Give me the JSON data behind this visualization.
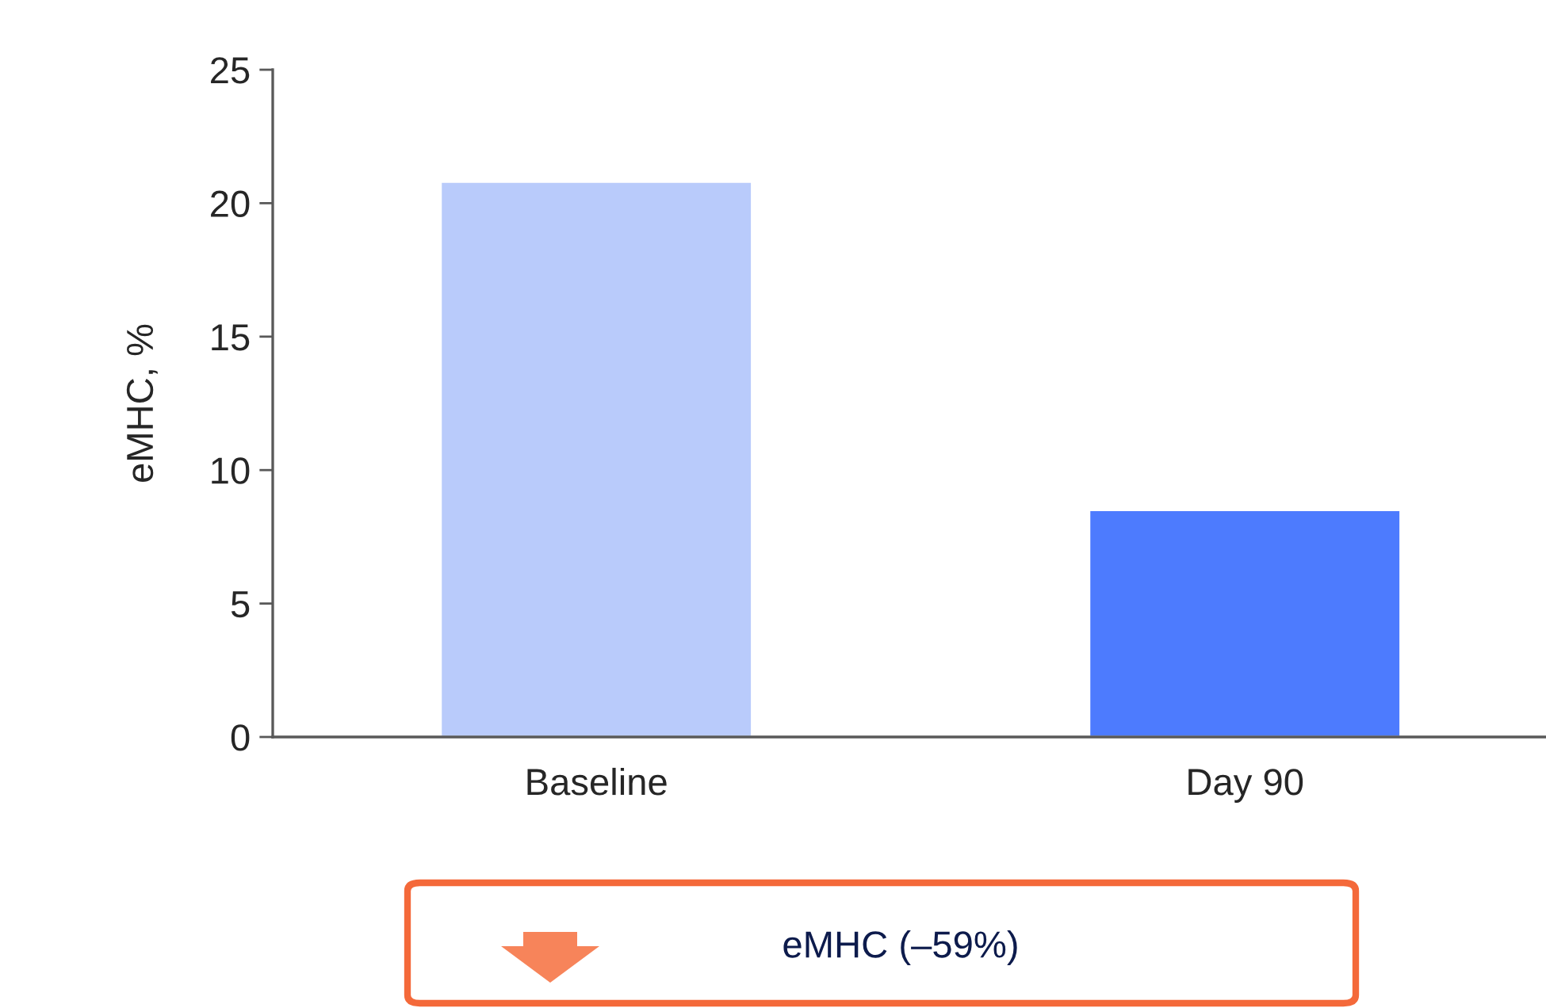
{
  "chart_data": {
    "type": "bar",
    "ylabel": "eMHC, %",
    "categories": [
      "Baseline",
      "Day 90"
    ],
    "values": [
      20.8,
      8.5
    ],
    "colors": [
      "#b9cbfb",
      "#4d7bfe"
    ],
    "ylim": [
      0,
      25
    ],
    "yticks": [
      0,
      5,
      10,
      15,
      20,
      25
    ],
    "grid": false,
    "annotations": [
      "eMHC (–59%)"
    ]
  }
}
